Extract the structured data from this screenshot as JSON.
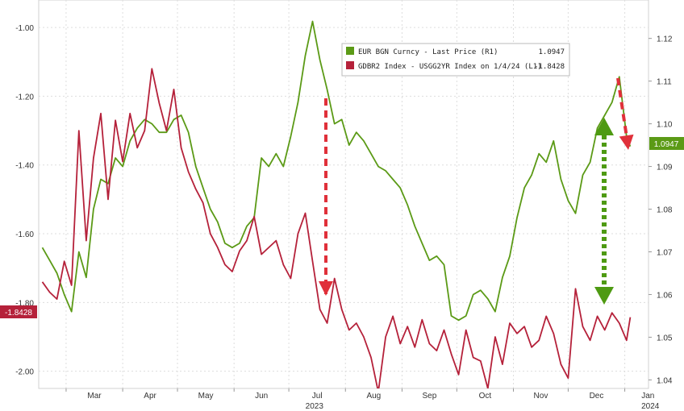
{
  "chart_data": {
    "type": "line",
    "x_axis": {
      "month_labels": [
        "Mar",
        "Apr",
        "May",
        "Jun",
        "Jul",
        "Aug",
        "Sep",
        "Oct",
        "Nov",
        "Dec",
        "Jan"
      ],
      "year_labels": [
        "2023",
        "2024"
      ]
    },
    "left_axis": {
      "ticks": [
        "-1.00",
        "-1.20",
        "-1.40",
        "-1.60",
        "-1.80",
        "-2.00"
      ],
      "range": [
        -2.05,
        -0.92
      ]
    },
    "right_axis": {
      "ticks": [
        "1.12",
        "1.11",
        "1.10",
        "1.09",
        "1.08",
        "1.07",
        "1.06",
        "1.05",
        "1.04"
      ],
      "range": [
        1.038,
        1.129
      ]
    },
    "grid": true,
    "legend_position": "top-center",
    "series": [
      {
        "name": "EUR BGN Curncy - Last Price (R1)",
        "last_value_label": "1.0947",
        "badge_label": "1.0947",
        "axis": "right",
        "color": "#5b9a16",
        "x": [
          "2023-02-16",
          "2023-02-20",
          "2023-02-24",
          "2023-02-28",
          "2023-03-04",
          "2023-03-08",
          "2023-03-12",
          "2023-03-16",
          "2023-03-20",
          "2023-03-24",
          "2023-03-28",
          "2023-04-01",
          "2023-04-05",
          "2023-04-09",
          "2023-04-13",
          "2023-04-17",
          "2023-04-21",
          "2023-04-25",
          "2023-04-29",
          "2023-05-03",
          "2023-05-07",
          "2023-05-11",
          "2023-05-15",
          "2023-05-19",
          "2023-05-23",
          "2023-05-27",
          "2023-05-31",
          "2023-06-04",
          "2023-06-08",
          "2023-06-12",
          "2023-06-16",
          "2023-06-20",
          "2023-06-24",
          "2023-06-28",
          "2023-07-02",
          "2023-07-06",
          "2023-07-10",
          "2023-07-14",
          "2023-07-18",
          "2023-07-22",
          "2023-07-26",
          "2023-07-30",
          "2023-08-03",
          "2023-08-07",
          "2023-08-11",
          "2023-08-15",
          "2023-08-19",
          "2023-08-23",
          "2023-08-27",
          "2023-08-31",
          "2023-09-04",
          "2023-09-08",
          "2023-09-12",
          "2023-09-16",
          "2023-09-20",
          "2023-09-24",
          "2023-09-28",
          "2023-10-02",
          "2023-10-06",
          "2023-10-10",
          "2023-10-14",
          "2023-10-18",
          "2023-10-22",
          "2023-10-26",
          "2023-10-30",
          "2023-11-03",
          "2023-11-07",
          "2023-11-11",
          "2023-11-15",
          "2023-11-19",
          "2023-11-23",
          "2023-11-27",
          "2023-12-01",
          "2023-12-05",
          "2023-12-09",
          "2023-12-13",
          "2023-12-17",
          "2023-12-21",
          "2023-12-25",
          "2023-12-29",
          "2024-01-02",
          "2024-01-04"
        ],
        "values": [
          1.071,
          1.068,
          1.065,
          1.06,
          1.056,
          1.07,
          1.064,
          1.08,
          1.087,
          1.086,
          1.092,
          1.09,
          1.096,
          1.099,
          1.101,
          1.1,
          1.098,
          1.098,
          1.101,
          1.102,
          1.098,
          1.09,
          1.085,
          1.08,
          1.077,
          1.072,
          1.071,
          1.072,
          1.076,
          1.078,
          1.092,
          1.09,
          1.093,
          1.09,
          1.097,
          1.105,
          1.116,
          1.124,
          1.115,
          1.108,
          1.1,
          1.101,
          1.095,
          1.098,
          1.096,
          1.093,
          1.09,
          1.089,
          1.087,
          1.085,
          1.081,
          1.076,
          1.072,
          1.068,
          1.069,
          1.067,
          1.055,
          1.054,
          1.055,
          1.06,
          1.061,
          1.059,
          1.056,
          1.064,
          1.069,
          1.078,
          1.085,
          1.088,
          1.093,
          1.091,
          1.096,
          1.087,
          1.082,
          1.079,
          1.088,
          1.091,
          1.099,
          1.102,
          1.105,
          1.111,
          1.097,
          1.0947
        ]
      },
      {
        "name": "GDBR2 Index - USGG2YR Index on 1/4/24 (L1)",
        "last_value_label": "-1.8428",
        "badge_label": "-1.8428",
        "axis": "left",
        "color": "#b5213a",
        "x": [
          "2023-02-16",
          "2023-02-20",
          "2023-02-24",
          "2023-02-28",
          "2023-03-04",
          "2023-03-08",
          "2023-03-12",
          "2023-03-16",
          "2023-03-20",
          "2023-03-24",
          "2023-03-28",
          "2023-04-01",
          "2023-04-05",
          "2023-04-09",
          "2023-04-13",
          "2023-04-17",
          "2023-04-21",
          "2023-04-25",
          "2023-04-29",
          "2023-05-03",
          "2023-05-07",
          "2023-05-11",
          "2023-05-15",
          "2023-05-19",
          "2023-05-23",
          "2023-05-27",
          "2023-05-31",
          "2023-06-04",
          "2023-06-08",
          "2023-06-12",
          "2023-06-16",
          "2023-06-20",
          "2023-06-24",
          "2023-06-28",
          "2023-07-02",
          "2023-07-06",
          "2023-07-10",
          "2023-07-14",
          "2023-07-18",
          "2023-07-22",
          "2023-07-26",
          "2023-07-30",
          "2023-08-03",
          "2023-08-07",
          "2023-08-11",
          "2023-08-15",
          "2023-08-19",
          "2023-08-23",
          "2023-08-27",
          "2023-08-31",
          "2023-09-04",
          "2023-09-08",
          "2023-09-12",
          "2023-09-16",
          "2023-09-20",
          "2023-09-24",
          "2023-09-28",
          "2023-10-02",
          "2023-10-06",
          "2023-10-10",
          "2023-10-14",
          "2023-10-18",
          "2023-10-22",
          "2023-10-26",
          "2023-10-30",
          "2023-11-03",
          "2023-11-07",
          "2023-11-11",
          "2023-11-15",
          "2023-11-19",
          "2023-11-23",
          "2023-11-27",
          "2023-12-01",
          "2023-12-05",
          "2023-12-09",
          "2023-12-13",
          "2023-12-17",
          "2023-12-21",
          "2023-12-25",
          "2023-12-29",
          "2024-01-02",
          "2024-01-04"
        ],
        "values": [
          -1.74,
          -1.77,
          -1.79,
          -1.68,
          -1.75,
          -1.3,
          -1.62,
          -1.38,
          -1.25,
          -1.5,
          -1.27,
          -1.39,
          -1.25,
          -1.35,
          -1.3,
          -1.12,
          -1.22,
          -1.3,
          -1.18,
          -1.35,
          -1.42,
          -1.47,
          -1.51,
          -1.6,
          -1.64,
          -1.69,
          -1.71,
          -1.65,
          -1.62,
          -1.55,
          -1.66,
          -1.64,
          -1.62,
          -1.69,
          -1.73,
          -1.6,
          -1.54,
          -1.68,
          -1.82,
          -1.86,
          -1.73,
          -1.82,
          -1.88,
          -1.86,
          -1.9,
          -1.96,
          -2.06,
          -1.9,
          -1.84,
          -1.92,
          -1.87,
          -1.93,
          -1.85,
          -1.92,
          -1.94,
          -1.88,
          -1.95,
          -2.01,
          -1.88,
          -1.96,
          -1.97,
          -2.05,
          -1.9,
          -1.98,
          -1.86,
          -1.89,
          -1.87,
          -1.93,
          -1.91,
          -1.84,
          -1.89,
          -1.98,
          -2.02,
          -1.76,
          -1.87,
          -1.91,
          -1.84,
          -1.88,
          -1.83,
          -1.86,
          -1.91,
          -1.8428
        ]
      }
    ],
    "annotations": [
      {
        "type": "arrow",
        "style": "dashed",
        "color": "#e0303a",
        "direction": "down",
        "at": "Jul"
      },
      {
        "type": "arrow",
        "style": "dashed",
        "color": "#e0303a",
        "direction": "down",
        "at": "late Dec"
      },
      {
        "type": "double-arrow",
        "style": "dotted",
        "color": "#4e9a12",
        "direction": "vertical",
        "at": "Dec"
      }
    ]
  }
}
